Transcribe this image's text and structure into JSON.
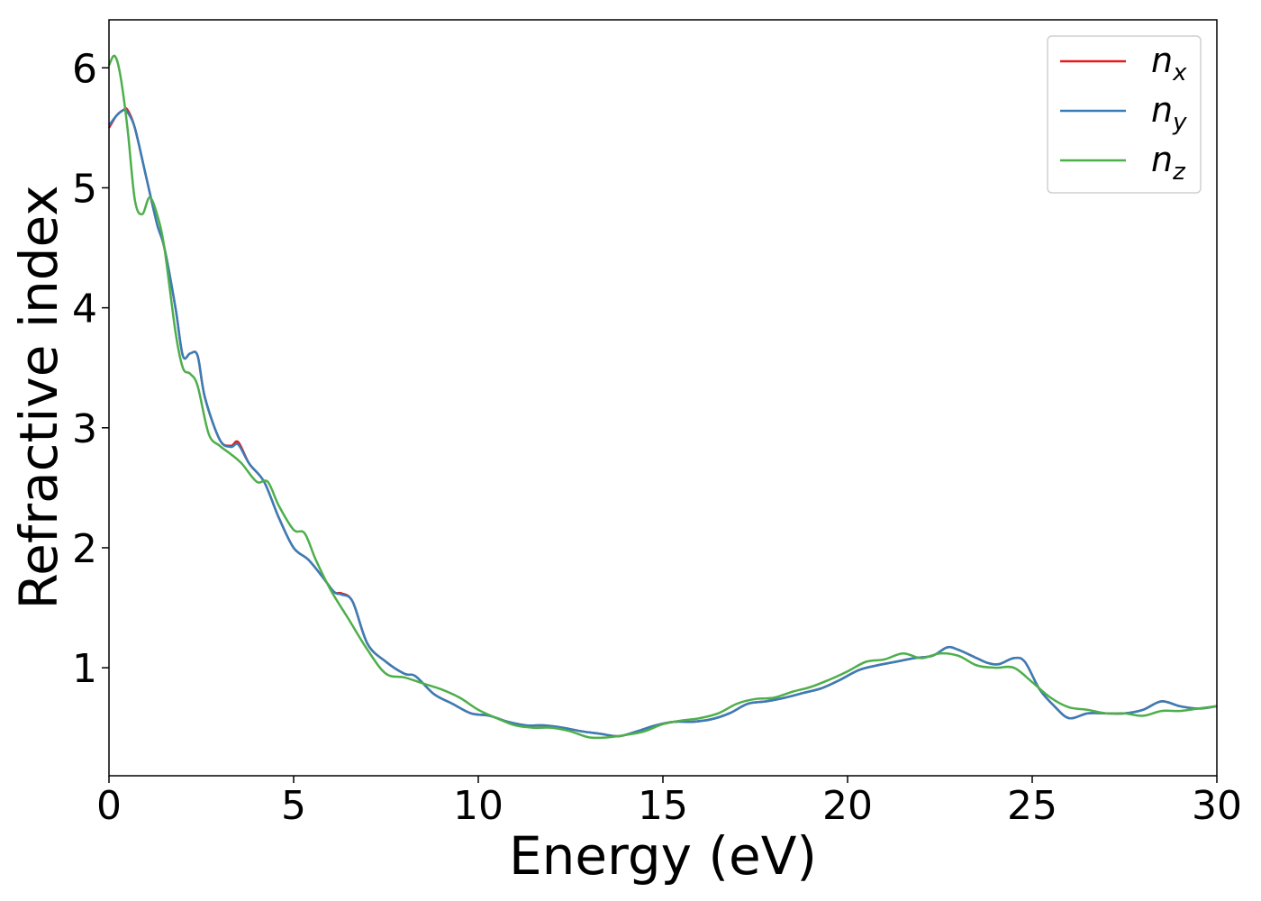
{
  "chart_data": {
    "type": "line",
    "xlabel": "Energy (eV)",
    "ylabel": "Refractive index",
    "xlim": [
      0,
      30
    ],
    "ylim": [
      0.1,
      6.4
    ],
    "xticks": [
      "0",
      "5",
      "10",
      "15",
      "20",
      "25",
      "30"
    ],
    "yticks": [
      "1",
      "2",
      "3",
      "4",
      "5",
      "6"
    ],
    "grid": false,
    "legend_position": "top-right",
    "series": [
      {
        "name": "n",
        "subscript": "x",
        "color": "#e41a1c",
        "x": [
          0,
          0.2,
          0.4,
          0.5,
          0.7,
          1.0,
          1.3,
          1.5,
          1.8,
          2.0,
          2.2,
          2.4,
          2.6,
          3.0,
          3.3,
          3.5,
          3.8,
          4.2,
          4.6,
          5.0,
          5.4,
          5.8,
          6.1,
          6.3,
          6.6,
          7.0,
          7.5,
          8.0,
          8.3,
          8.8,
          9.3,
          9.8,
          10.3,
          10.8,
          11.3,
          11.8,
          12.3,
          12.8,
          13.3,
          13.8,
          14.3,
          14.8,
          15.3,
          15.8,
          16.3,
          16.8,
          17.3,
          17.8,
          18.3,
          18.8,
          19.3,
          19.8,
          20.3,
          20.8,
          21.3,
          21.8,
          22.3,
          22.7,
          23.0,
          23.5,
          23.8,
          24.1,
          24.5,
          24.8,
          25.2,
          25.6,
          26.0,
          26.5,
          27.0,
          27.5,
          28.0,
          28.5,
          29.0,
          29.5,
          30.0
        ],
        "y": [
          5.5,
          5.6,
          5.65,
          5.65,
          5.5,
          5.1,
          4.7,
          4.5,
          4.0,
          3.6,
          3.62,
          3.6,
          3.25,
          2.9,
          2.85,
          2.88,
          2.7,
          2.55,
          2.25,
          2.0,
          1.9,
          1.75,
          1.63,
          1.62,
          1.55,
          1.2,
          1.05,
          0.95,
          0.93,
          0.78,
          0.7,
          0.62,
          0.6,
          0.55,
          0.52,
          0.52,
          0.5,
          0.47,
          0.45,
          0.43,
          0.47,
          0.52,
          0.55,
          0.55,
          0.57,
          0.62,
          0.7,
          0.72,
          0.75,
          0.79,
          0.83,
          0.9,
          0.98,
          1.02,
          1.05,
          1.08,
          1.1,
          1.17,
          1.15,
          1.08,
          1.04,
          1.03,
          1.08,
          1.05,
          0.82,
          0.68,
          0.58,
          0.62,
          0.62,
          0.62,
          0.65,
          0.72,
          0.68,
          0.66,
          0.68
        ]
      },
      {
        "name": "n",
        "subscript": "y",
        "color": "#377eb8",
        "x": [
          0,
          0.2,
          0.4,
          0.5,
          0.7,
          1.0,
          1.3,
          1.5,
          1.8,
          2.0,
          2.2,
          2.4,
          2.6,
          3.0,
          3.3,
          3.5,
          3.8,
          4.2,
          4.6,
          5.0,
          5.4,
          5.8,
          6.1,
          6.3,
          6.6,
          7.0,
          7.5,
          8.0,
          8.3,
          8.8,
          9.3,
          9.8,
          10.3,
          10.8,
          11.3,
          11.8,
          12.3,
          12.8,
          13.3,
          13.8,
          14.3,
          14.8,
          15.3,
          15.8,
          16.3,
          16.8,
          17.3,
          17.8,
          18.3,
          18.8,
          19.3,
          19.8,
          20.3,
          20.8,
          21.3,
          21.8,
          22.3,
          22.7,
          23.0,
          23.5,
          23.8,
          24.1,
          24.5,
          24.8,
          25.2,
          25.6,
          26.0,
          26.5,
          27.0,
          27.5,
          28.0,
          28.5,
          29.0,
          29.5,
          30.0
        ],
        "y": [
          5.52,
          5.6,
          5.65,
          5.63,
          5.5,
          5.1,
          4.7,
          4.5,
          4.0,
          3.6,
          3.62,
          3.6,
          3.25,
          2.9,
          2.84,
          2.86,
          2.7,
          2.55,
          2.25,
          2.0,
          1.9,
          1.75,
          1.63,
          1.61,
          1.55,
          1.2,
          1.05,
          0.95,
          0.93,
          0.78,
          0.7,
          0.62,
          0.6,
          0.55,
          0.52,
          0.52,
          0.5,
          0.47,
          0.45,
          0.43,
          0.47,
          0.52,
          0.55,
          0.55,
          0.57,
          0.62,
          0.7,
          0.72,
          0.75,
          0.79,
          0.83,
          0.9,
          0.98,
          1.02,
          1.05,
          1.08,
          1.1,
          1.17,
          1.15,
          1.08,
          1.04,
          1.03,
          1.08,
          1.05,
          0.82,
          0.68,
          0.58,
          0.62,
          0.62,
          0.62,
          0.65,
          0.72,
          0.68,
          0.66,
          0.68
        ]
      },
      {
        "name": "n",
        "subscript": "z",
        "color": "#4daf4a",
        "x": [
          0,
          0.15,
          0.3,
          0.5,
          0.7,
          0.9,
          1.1,
          1.3,
          1.5,
          1.8,
          2.0,
          2.2,
          2.4,
          2.7,
          3.0,
          3.3,
          3.6,
          4.0,
          4.3,
          4.6,
          5.0,
          5.3,
          5.6,
          6.0,
          6.5,
          7.0,
          7.5,
          8.0,
          8.5,
          9.0,
          9.5,
          10.0,
          10.5,
          11.0,
          11.5,
          12.0,
          12.5,
          13.0,
          13.5,
          14.0,
          14.5,
          15.0,
          15.5,
          16.0,
          16.5,
          17.0,
          17.5,
          18.0,
          18.5,
          19.0,
          19.5,
          20.0,
          20.5,
          21.0,
          21.5,
          22.0,
          22.5,
          23.0,
          23.5,
          24.0,
          24.5,
          25.0,
          25.5,
          26.0,
          26.5,
          27.0,
          27.5,
          28.0,
          28.5,
          29.0,
          29.5,
          30.0
        ],
        "y": [
          6.02,
          6.1,
          5.95,
          5.5,
          4.9,
          4.78,
          4.92,
          4.78,
          4.5,
          3.8,
          3.5,
          3.45,
          3.35,
          2.95,
          2.85,
          2.78,
          2.7,
          2.55,
          2.55,
          2.35,
          2.15,
          2.12,
          1.9,
          1.65,
          1.4,
          1.15,
          0.95,
          0.92,
          0.87,
          0.82,
          0.75,
          0.65,
          0.58,
          0.52,
          0.5,
          0.5,
          0.47,
          0.42,
          0.42,
          0.44,
          0.47,
          0.53,
          0.56,
          0.58,
          0.62,
          0.7,
          0.74,
          0.75,
          0.8,
          0.84,
          0.9,
          0.97,
          1.05,
          1.07,
          1.12,
          1.08,
          1.12,
          1.1,
          1.02,
          1.0,
          1.0,
          0.88,
          0.75,
          0.67,
          0.65,
          0.62,
          0.62,
          0.6,
          0.64,
          0.64,
          0.66,
          0.68
        ]
      }
    ]
  }
}
